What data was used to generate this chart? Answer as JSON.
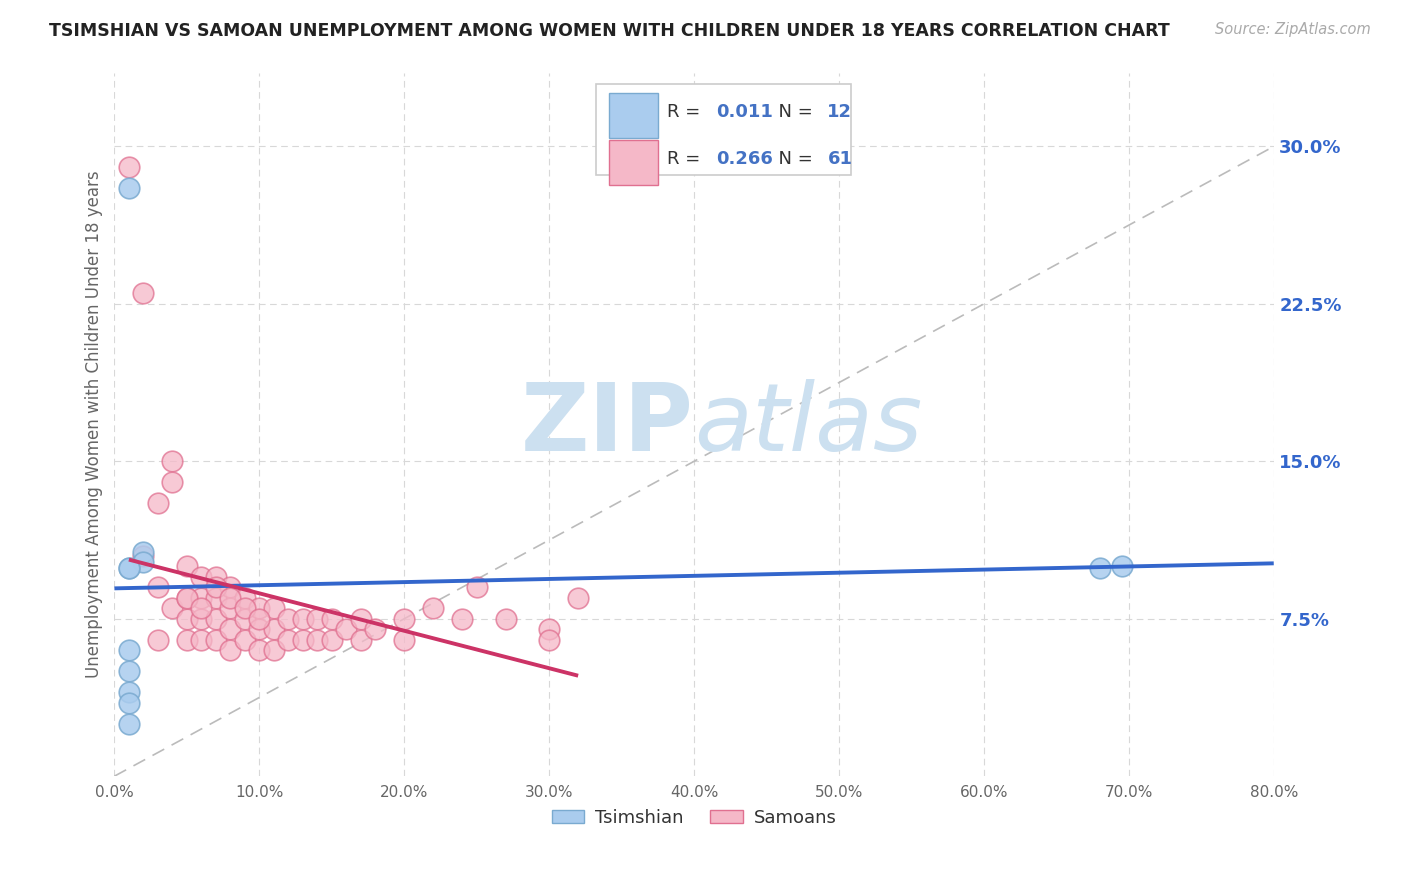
{
  "title": "TSIMSHIAN VS SAMOAN UNEMPLOYMENT AMONG WOMEN WITH CHILDREN UNDER 18 YEARS CORRELATION CHART",
  "source": "Source: ZipAtlas.com",
  "ylabel": "Unemployment Among Women with Children Under 18 years",
  "xlim": [
    0.0,
    0.8
  ],
  "ylim": [
    0.0,
    0.335
  ],
  "xticks": [
    0.0,
    0.1,
    0.2,
    0.3,
    0.4,
    0.5,
    0.6,
    0.7,
    0.8
  ],
  "xticklabels": [
    "0.0%",
    "10.0%",
    "20.0%",
    "30.0%",
    "40.0%",
    "50.0%",
    "60.0%",
    "70.0%",
    "80.0%"
  ],
  "yticks_right": [
    0.075,
    0.15,
    0.225,
    0.3
  ],
  "ytick_labels_right": [
    "7.5%",
    "15.0%",
    "22.5%",
    "30.0%"
  ],
  "background_color": "#ffffff",
  "grid_color": "#d8d8d8",
  "watermark_zip": "ZIP",
  "watermark_atlas": "atlas",
  "watermark_color": "#cce0f0",
  "tsimshian_color": "#aaccee",
  "tsimshian_edge": "#7aaad0",
  "samoan_color": "#f5b8c8",
  "samoan_edge": "#e07090",
  "tsimshian_R": 0.011,
  "tsimshian_N": 12,
  "samoan_R": 0.266,
  "samoan_N": 61,
  "tsimshian_line_color": "#3366cc",
  "samoan_line_color": "#cc3366",
  "diagonal_color": "#bbbbbb",
  "legend_R_color": "#4472c4",
  "legend_label_color": "#333333",
  "tsimshian_points_x": [
    0.01,
    0.02,
    0.02,
    0.01,
    0.01,
    0.01,
    0.01,
    0.01,
    0.01,
    0.01,
    0.68,
    0.695
  ],
  "tsimshian_points_y": [
    0.28,
    0.107,
    0.102,
    0.099,
    0.099,
    0.06,
    0.05,
    0.04,
    0.035,
    0.025,
    0.099,
    0.1
  ],
  "samoan_points_x": [
    0.01,
    0.02,
    0.02,
    0.03,
    0.03,
    0.03,
    0.04,
    0.04,
    0.04,
    0.05,
    0.05,
    0.05,
    0.05,
    0.06,
    0.06,
    0.06,
    0.06,
    0.07,
    0.07,
    0.07,
    0.07,
    0.08,
    0.08,
    0.08,
    0.08,
    0.09,
    0.09,
    0.09,
    0.1,
    0.1,
    0.1,
    0.11,
    0.11,
    0.11,
    0.12,
    0.12,
    0.13,
    0.13,
    0.14,
    0.14,
    0.15,
    0.15,
    0.16,
    0.17,
    0.17,
    0.18,
    0.2,
    0.2,
    0.22,
    0.24,
    0.25,
    0.27,
    0.3,
    0.3,
    0.32,
    0.05,
    0.06,
    0.07,
    0.08,
    0.09,
    0.1
  ],
  "samoan_points_y": [
    0.29,
    0.23,
    0.105,
    0.13,
    0.09,
    0.065,
    0.15,
    0.14,
    0.08,
    0.1,
    0.085,
    0.075,
    0.065,
    0.095,
    0.085,
    0.075,
    0.065,
    0.095,
    0.085,
    0.075,
    0.065,
    0.09,
    0.08,
    0.07,
    0.06,
    0.085,
    0.075,
    0.065,
    0.08,
    0.07,
    0.06,
    0.08,
    0.07,
    0.06,
    0.075,
    0.065,
    0.075,
    0.065,
    0.075,
    0.065,
    0.075,
    0.065,
    0.07,
    0.075,
    0.065,
    0.07,
    0.075,
    0.065,
    0.08,
    0.075,
    0.09,
    0.075,
    0.07,
    0.065,
    0.085,
    0.085,
    0.08,
    0.09,
    0.085,
    0.08,
    0.075
  ]
}
